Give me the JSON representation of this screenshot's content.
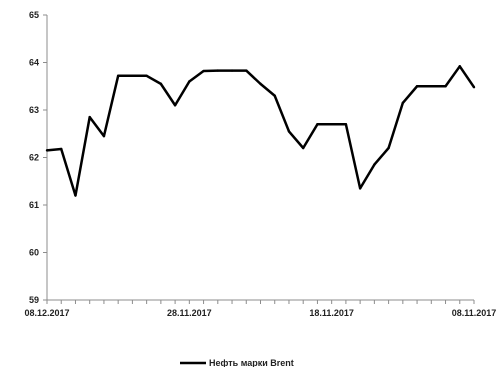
{
  "chart_data": {
    "type": "line",
    "title": "",
    "xlabel": "",
    "ylabel": "",
    "ylim": [
      59,
      65
    ],
    "yticks": [
      59,
      60,
      61,
      62,
      63,
      64,
      65
    ],
    "grid": false,
    "legend_position": "bottom-center",
    "x_tick_labels": [
      {
        "index": 0,
        "label": "08.12.2017"
      },
      {
        "index": 10,
        "label": "28.11.2017"
      },
      {
        "index": 20,
        "label": "18.11.2017"
      },
      {
        "index": 30,
        "label": "08.11.2017"
      }
    ],
    "series": [
      {
        "name": "Нефть марки Brent",
        "color": "#000000",
        "values": [
          62.15,
          62.18,
          61.2,
          62.85,
          62.45,
          63.72,
          63.72,
          63.72,
          63.55,
          63.1,
          63.6,
          63.82,
          63.83,
          63.83,
          63.83,
          63.55,
          63.3,
          62.55,
          62.2,
          62.7,
          62.7,
          62.7,
          61.35,
          61.85,
          62.2,
          63.15,
          63.5,
          63.5,
          63.5,
          63.92,
          63.48
        ]
      }
    ]
  }
}
